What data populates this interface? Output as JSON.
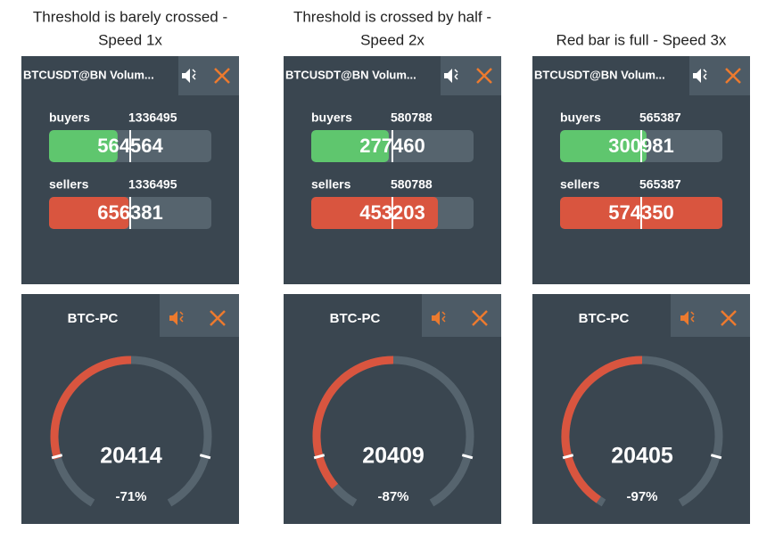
{
  "panels": [
    {
      "caption": [
        "Threshold is barely crossed -",
        "Speed 1x"
      ],
      "volume": {
        "title": "BTCUSDT@BN Volum...",
        "rows": [
          {
            "label": "buyers",
            "total": 1336495,
            "value": 564564
          },
          {
            "label": "sellers",
            "total": 1336495,
            "value": 656381
          }
        ]
      },
      "gauge": {
        "title": "BTC-PC",
        "value": 20414,
        "percent": "-71%"
      }
    },
    {
      "caption": [
        "Threshold is crossed by half -",
        "Speed 2x"
      ],
      "volume": {
        "title": "BTCUSDT@BN Volum...",
        "rows": [
          {
            "label": "buyers",
            "total": 580788,
            "value": 277460
          },
          {
            "label": "sellers",
            "total": 580788,
            "value": 453203
          }
        ]
      },
      "gauge": {
        "title": "BTC-PC",
        "value": 20409,
        "percent": "-87%"
      }
    },
    {
      "caption": [
        "Red bar is full - Speed 3x"
      ],
      "volume": {
        "title": "BTCUSDT@BN Volum...",
        "rows": [
          {
            "label": "buyers",
            "total": 565387,
            "value": 300981
          },
          {
            "label": "sellers",
            "total": 565387,
            "value": 574350
          }
        ]
      },
      "gauge": {
        "title": "BTC-PC",
        "value": 20405,
        "percent": "-97%"
      }
    }
  ]
}
